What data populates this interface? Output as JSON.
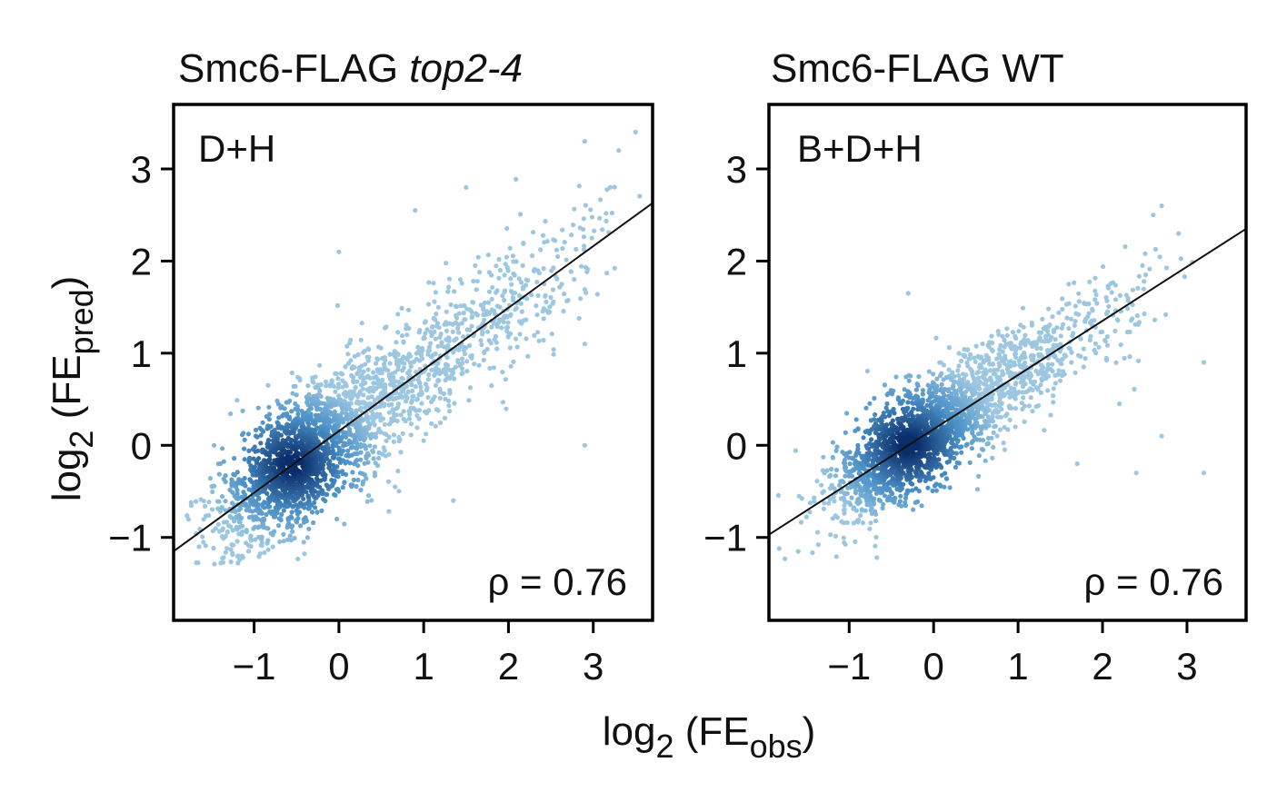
{
  "labels": {
    "y_axis": {
      "main": "log",
      "sub": "2",
      "open": " (FE",
      "pred": "pred",
      "close": ")"
    },
    "x_axis": {
      "main": "log",
      "sub": "2",
      "open": " (FE",
      "obs": "obs",
      "close": ")"
    }
  },
  "colors": {
    "point_light": "#9dc7e1",
    "point_mid": "#4a90c6",
    "point_dark": "#0b2e6b",
    "fit_line": "#111111"
  },
  "chart_data": [
    {
      "type": "scatter",
      "title_prefix": "Smc6-FLAG ",
      "title_italic": "top2-4",
      "annotation": "D+H",
      "rho": "ρ = 0.76",
      "xlim": [
        -1.95,
        3.7
      ],
      "ylim": [
        -1.9,
        3.7
      ],
      "xticks": [
        "−1",
        "0",
        "1",
        "2",
        "3"
      ],
      "xtick_values": [
        -1,
        0,
        1,
        2,
        3
      ],
      "yticks": [
        "−1",
        "0",
        "1",
        "2",
        "3"
      ],
      "ytick_values": [
        -1,
        0,
        1,
        2,
        3
      ],
      "fit_line": {
        "x": [
          -1.95,
          3.7
        ],
        "y": [
          -1.15,
          2.63
        ]
      },
      "density_center": [
        -0.55,
        -0.3
      ],
      "points_sample": [
        {
          "x": 3.5,
          "y": 3.4
        },
        {
          "x": 3.3,
          "y": 3.2
        },
        {
          "x": 2.9,
          "y": 3.3
        },
        {
          "x": 1.5,
          "y": 2.8
        },
        {
          "x": 0.9,
          "y": 2.55
        },
        {
          "x": 0.0,
          "y": 2.1
        },
        {
          "x": 2.9,
          "y": 1.1
        },
        {
          "x": 2.9,
          "y": 0.0
        },
        {
          "x": -1.65,
          "y": -1.1
        },
        {
          "x": 1.35,
          "y": -0.6
        },
        {
          "x": 3.2,
          "y": 2.8
        },
        {
          "x": 1.7,
          "y": 1.5
        }
      ]
    },
    {
      "type": "scatter",
      "title_prefix": "Smc6-FLAG WT",
      "title_italic": "",
      "annotation": "B+D+H",
      "rho": "ρ = 0.76",
      "xlim": [
        -1.95,
        3.7
      ],
      "ylim": [
        -1.9,
        3.7
      ],
      "xticks": [
        "−1",
        "0",
        "1",
        "2",
        "3"
      ],
      "xtick_values": [
        -1,
        0,
        1,
        2,
        3
      ],
      "yticks": [
        "−1",
        "0",
        "1",
        "2",
        "3"
      ],
      "ytick_values": [
        -1,
        0,
        1,
        2,
        3
      ],
      "fit_line": {
        "x": [
          -1.95,
          3.7
        ],
        "y": [
          -0.97,
          2.35
        ]
      },
      "density_center": [
        -0.3,
        -0.15
      ],
      "points_sample": [
        {
          "x": 2.7,
          "y": 2.6
        },
        {
          "x": 2.6,
          "y": 2.5
        },
        {
          "x": 2.9,
          "y": 2.3
        },
        {
          "x": 3.2,
          "y": 0.9
        },
        {
          "x": 3.2,
          "y": -0.3
        },
        {
          "x": 2.7,
          "y": 0.1
        },
        {
          "x": -0.3,
          "y": 1.65
        },
        {
          "x": -1.3,
          "y": -0.5
        },
        {
          "x": 2.4,
          "y": -0.3
        },
        {
          "x": 1.7,
          "y": -0.2
        },
        {
          "x": 2.2,
          "y": 0.45
        },
        {
          "x": 1.6,
          "y": 1.75
        }
      ]
    }
  ]
}
